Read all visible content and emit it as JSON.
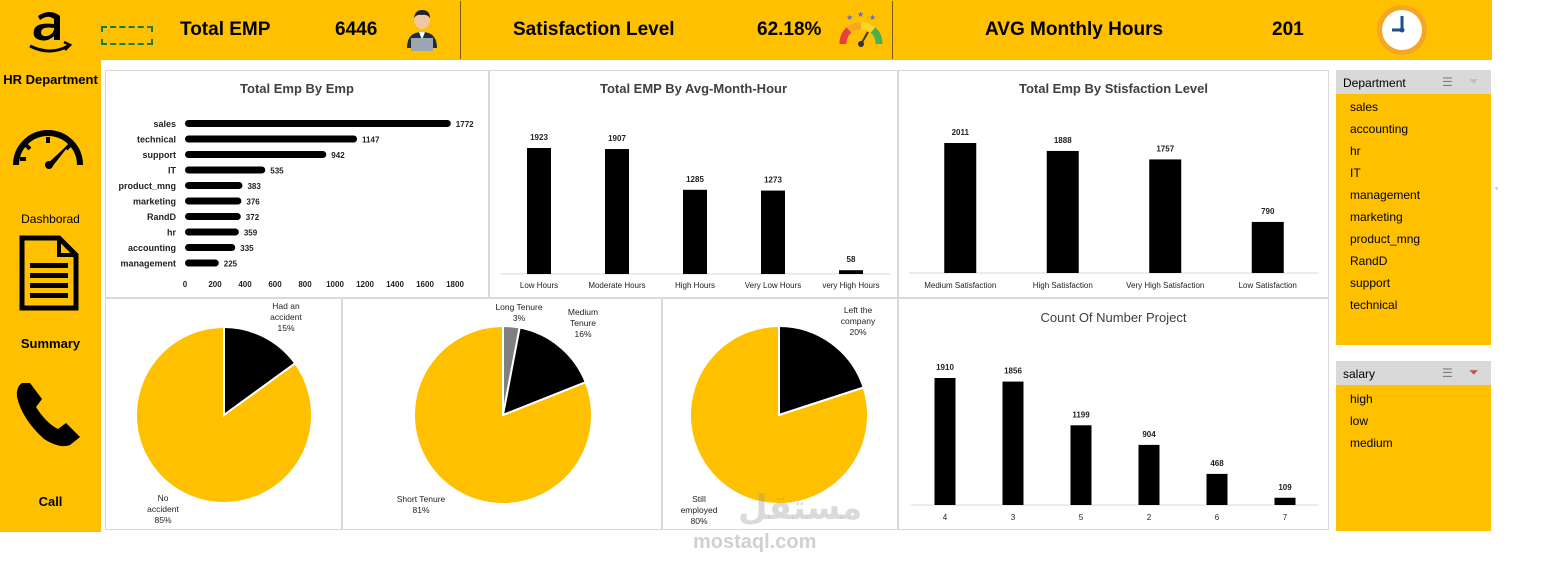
{
  "kpis": {
    "total_emp_label": "Total EMP",
    "total_emp_value": "6446",
    "satisfaction_label": "Satisfaction Level",
    "satisfaction_value": "62.18%",
    "avg_hours_label": "AVG Monthly Hours",
    "avg_hours_value": "201"
  },
  "sidebar": {
    "title": "HR Department",
    "dashboard": "Dashborad",
    "summary": "Summary",
    "call": "Call"
  },
  "colors": {
    "accent": "#FFC000",
    "bar": "#000000",
    "grey": "#808080"
  },
  "chart_data": [
    {
      "type": "bar",
      "orientation": "horizontal",
      "title": "Total Emp By Emp",
      "categories": [
        "sales",
        "technical",
        "support",
        "IT",
        "product_mng",
        "marketing",
        "RandD",
        "hr",
        "accounting",
        "management"
      ],
      "values": [
        1772,
        1147,
        942,
        535,
        383,
        376,
        372,
        359,
        335,
        225
      ],
      "ticks": [
        "0",
        "200",
        "400",
        "600",
        "800",
        "1000",
        "1200",
        "1400",
        "1600",
        "1800"
      ],
      "xlim": [
        0,
        1800
      ]
    },
    {
      "type": "bar",
      "title": "Total EMP By Avg-Month-Hour",
      "categories": [
        "Low Hours",
        "Moderate Hours",
        "High Hours",
        "Very Low Hours",
        "very High Hours"
      ],
      "values": [
        1923,
        1907,
        1285,
        1273,
        58
      ]
    },
    {
      "type": "bar",
      "title": "Total Emp By Stisfaction Level",
      "categories": [
        "Medium Satisfaction",
        "High Satisfaction",
        "Very High Satisfaction",
        "Low Satisfaction"
      ],
      "values": [
        2011,
        1888,
        1757,
        790
      ]
    },
    {
      "type": "bar",
      "title": "Count Of Number Project",
      "categories": [
        "4",
        "3",
        "5",
        "2",
        "6",
        "7"
      ],
      "values": [
        1910,
        1856,
        1199,
        904,
        468,
        109
      ]
    },
    {
      "type": "pie",
      "slices": [
        {
          "label_lines": [
            "Had an",
            "accident",
            "15%"
          ],
          "value": 15,
          "color": "#000000"
        },
        {
          "label_lines": [
            "No",
            "accident",
            "85%"
          ],
          "value": 85,
          "color": "#FFC000"
        }
      ]
    },
    {
      "type": "pie",
      "slices": [
        {
          "label_lines": [
            "Long Tenure",
            "3%"
          ],
          "value": 3,
          "color": "#808080"
        },
        {
          "label_lines": [
            "Medium",
            "Tenure",
            "16%"
          ],
          "value": 16,
          "color": "#000000"
        },
        {
          "label_lines": [
            "Short Tenure",
            "81%"
          ],
          "value": 81,
          "color": "#FFC000"
        }
      ]
    },
    {
      "type": "pie",
      "slices": [
        {
          "label_lines": [
            "Left the",
            "company",
            "20%"
          ],
          "value": 20,
          "color": "#000000"
        },
        {
          "label_lines": [
            "Still",
            "employed",
            "80%"
          ],
          "value": 80,
          "color": "#FFC000"
        }
      ]
    }
  ],
  "slicers": {
    "department": {
      "header": "Department",
      "items": [
        "sales",
        "accounting",
        "hr",
        "IT",
        "management",
        "marketing",
        "product_mng",
        "RandD",
        "support",
        "technical"
      ]
    },
    "salary": {
      "header": "salary",
      "items": [
        "high",
        "low",
        "medium"
      ]
    }
  },
  "watermark": {
    "brand": "مستقل",
    "url": "mostaql.com"
  }
}
